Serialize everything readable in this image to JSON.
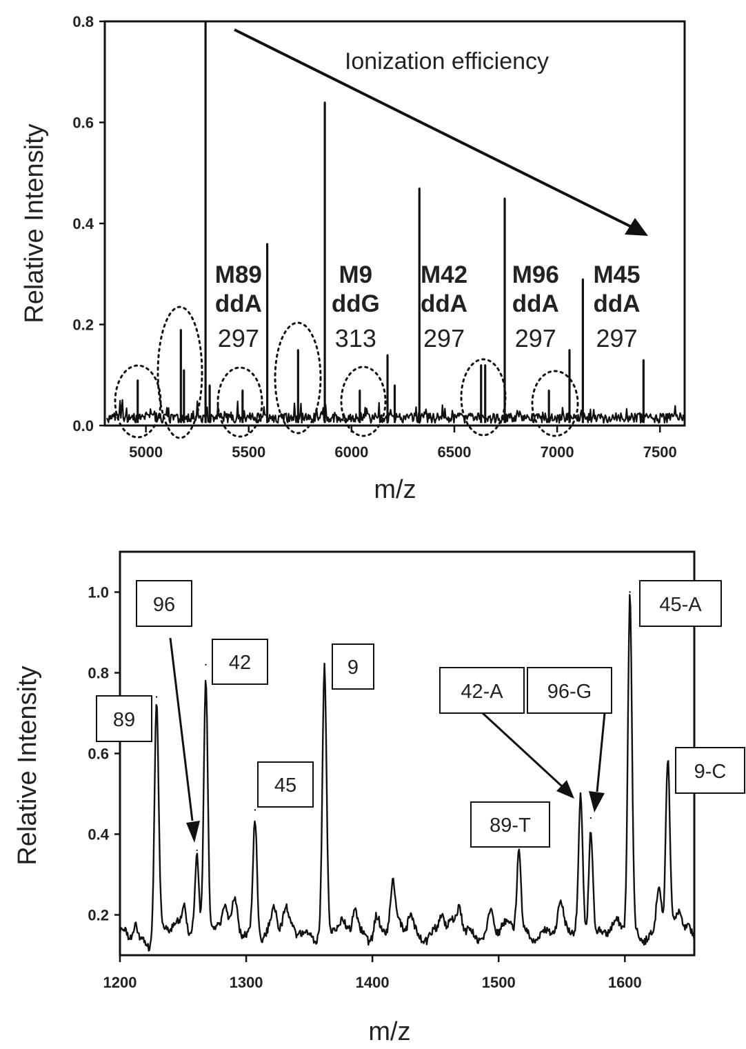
{
  "chart_data": [
    {
      "type": "line",
      "xlabel": "m/z",
      "ylabel": "Relative Intensity",
      "xlim": [
        4800,
        7620
      ],
      "ylim": [
        0,
        0.8
      ],
      "x_ticks": [
        "5000",
        "5500",
        "6000",
        "6500",
        "7000",
        "7500"
      ],
      "y_ticks": [
        "0.0",
        "0.2",
        "0.4",
        "0.6",
        "0.8"
      ],
      "annotation": "Ionization efficiency",
      "peaks": [
        {
          "x": 4960,
          "y": 0.09
        },
        {
          "x": 5170,
          "y": 0.19
        },
        {
          "x": 5185,
          "y": 0.11
        },
        {
          "x": 5290,
          "y": 0.8
        },
        {
          "x": 5310,
          "y": 0.08
        },
        {
          "x": 5470,
          "y": 0.07
        },
        {
          "x": 5590,
          "y": 0.36
        },
        {
          "x": 5740,
          "y": 0.15
        },
        {
          "x": 5870,
          "y": 0.64
        },
        {
          "x": 6040,
          "y": 0.07
        },
        {
          "x": 6175,
          "y": 0.14
        },
        {
          "x": 6210,
          "y": 0.08
        },
        {
          "x": 6330,
          "y": 0.47
        },
        {
          "x": 6630,
          "y": 0.12
        },
        {
          "x": 6650,
          "y": 0.12
        },
        {
          "x": 6745,
          "y": 0.45
        },
        {
          "x": 6960,
          "y": 0.07
        },
        {
          "x": 7060,
          "y": 0.15
        },
        {
          "x": 7125,
          "y": 0.29
        },
        {
          "x": 7420,
          "y": 0.13
        }
      ],
      "labels": [
        {
          "name": "M89",
          "base": "ddA",
          "mass": "297",
          "x": 5450
        },
        {
          "name": "M9",
          "base": "ddG",
          "mass": "313",
          "x": 6020
        },
        {
          "name": "M42",
          "base": "ddA",
          "mass": "297",
          "x": 6450
        },
        {
          "name": "M96",
          "base": "ddA",
          "mass": "297",
          "x": 6895
        },
        {
          "name": "M45",
          "base": "ddA",
          "mass": "297",
          "x": 7290
        }
      ],
      "dotted_regions_x": [
        4960,
        5170,
        5470,
        5740,
        6040,
        6640,
        6970
      ]
    },
    {
      "type": "line",
      "xlabel": "m/z",
      "ylabel": "Relative Intensity",
      "xlim": [
        1200,
        1655
      ],
      "ylim": [
        0.1,
        1.1
      ],
      "x_ticks": [
        "1200",
        "1300",
        "1400",
        "1500",
        "1600"
      ],
      "y_ticks": [
        "0.2",
        "0.4",
        "0.6",
        "0.8",
        "1.0"
      ],
      "peaks": [
        {
          "x": 1229,
          "y": 0.74
        },
        {
          "x": 1261,
          "y": 0.36
        },
        {
          "x": 1268,
          "y": 0.82
        },
        {
          "x": 1307,
          "y": 0.46
        },
        {
          "x": 1362,
          "y": 0.82
        },
        {
          "x": 1516,
          "y": 0.37
        },
        {
          "x": 1565,
          "y": 0.5
        },
        {
          "x": 1573,
          "y": 0.44
        },
        {
          "x": 1604,
          "y": 1.0
        },
        {
          "x": 1634,
          "y": 0.58
        }
      ],
      "labels": [
        "89",
        "96",
        "42",
        "45",
        "9",
        "89-T",
        "42-A",
        "96-G",
        "45-A",
        "9-C"
      ]
    }
  ]
}
